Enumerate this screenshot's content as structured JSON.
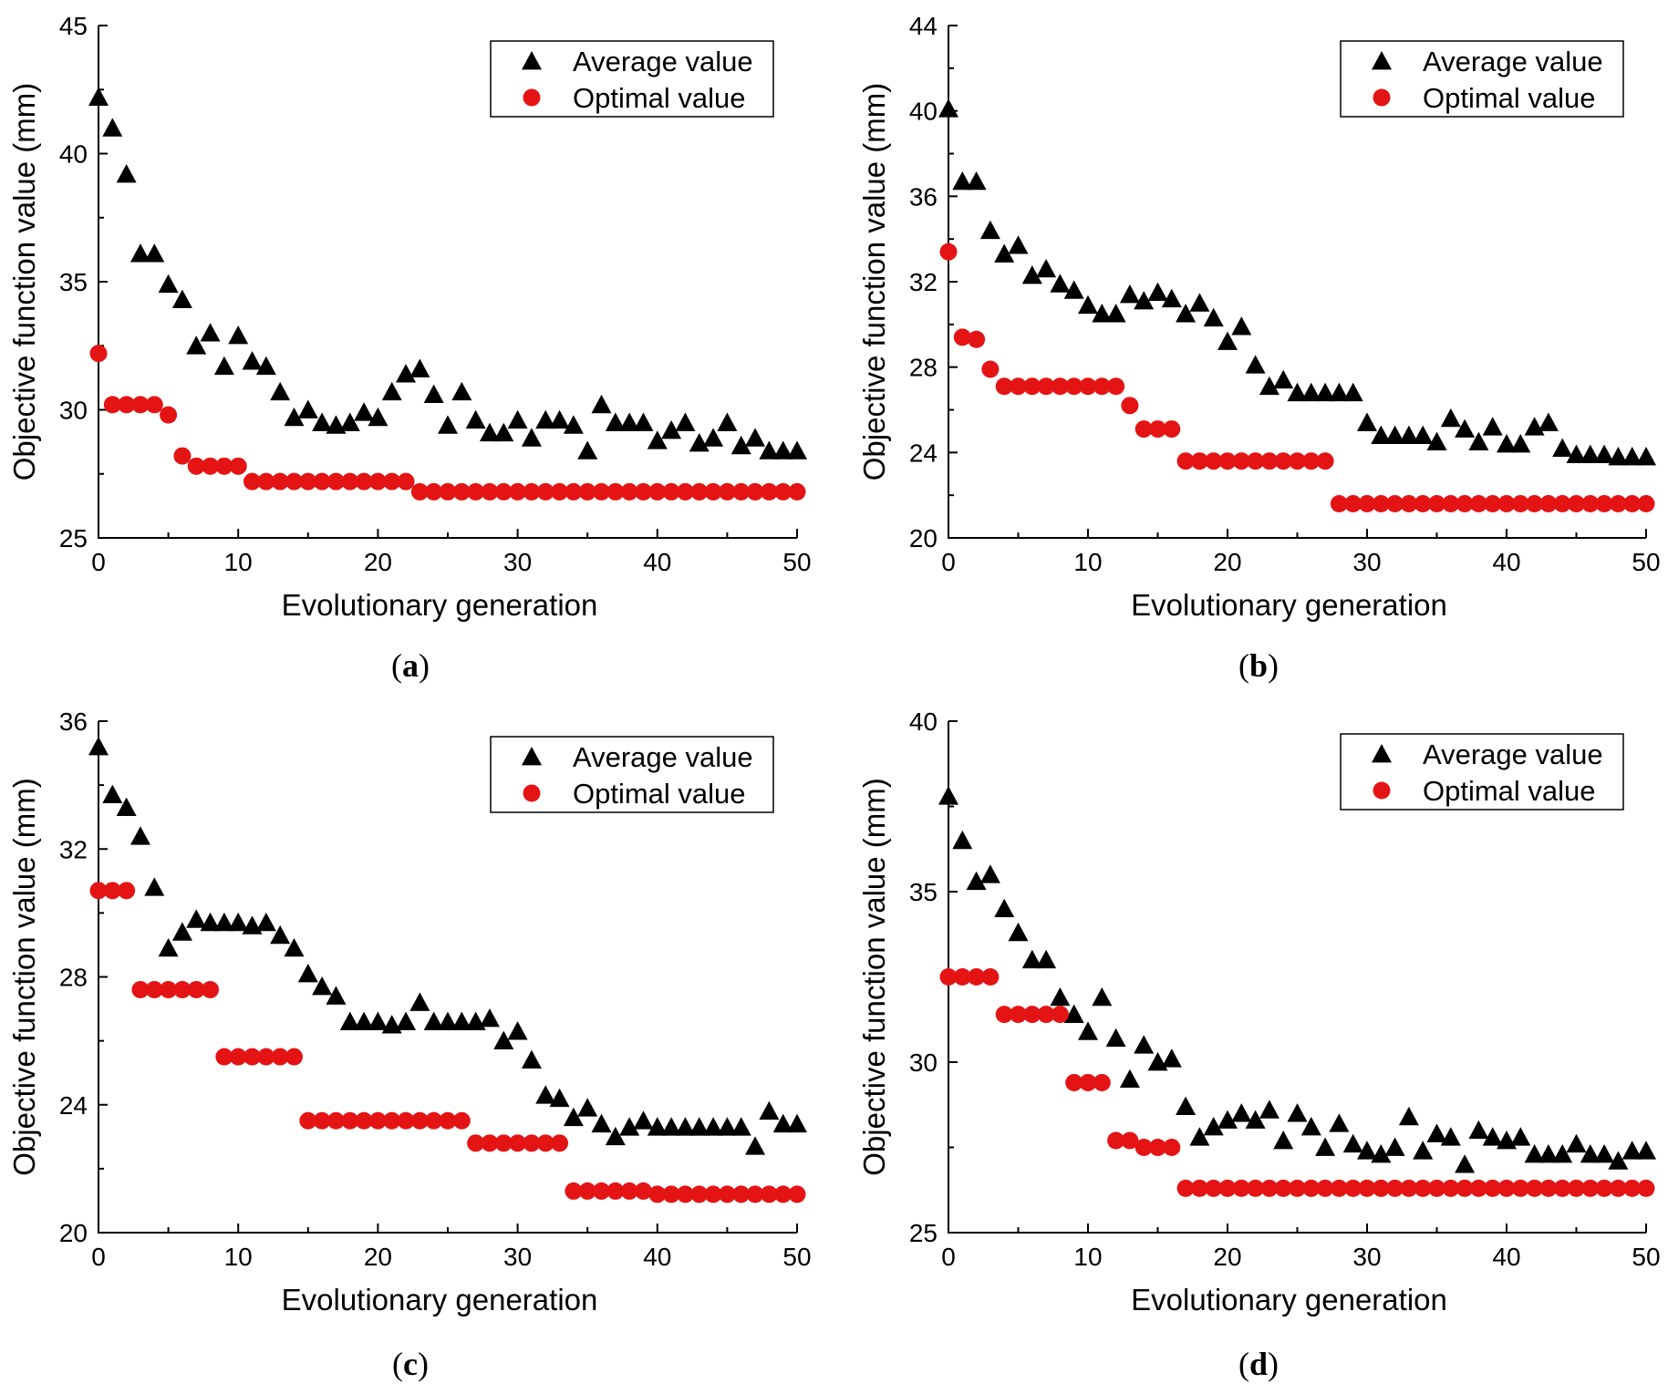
{
  "colors": {
    "average": "#000000",
    "optimal": "#e41414",
    "axis": "#000000"
  },
  "chart_data": [
    {
      "panel": "(a)",
      "panel_letter": "a",
      "type": "scatter",
      "xlabel": "Evolutionary generation",
      "ylabel": "Objective function value (mm)",
      "xlim": [
        0,
        50
      ],
      "ylim": [
        25,
        45
      ],
      "xticks": [
        0,
        10,
        20,
        30,
        40,
        50
      ],
      "yticks": [
        25,
        30,
        35,
        40,
        45
      ],
      "legend_position": "top-right",
      "series": [
        {
          "name": "Average value",
          "marker": "triangle",
          "values": [
            42.2,
            41.0,
            39.2,
            36.1,
            36.1,
            34.9,
            34.3,
            32.5,
            33.0,
            31.7,
            32.9,
            31.9,
            31.7,
            30.7,
            29.7,
            30.0,
            29.5,
            29.4,
            29.5,
            29.9,
            29.7,
            30.7,
            31.4,
            31.6,
            30.6,
            29.4,
            30.7,
            29.6,
            29.1,
            29.1,
            29.6,
            28.9,
            29.6,
            29.6,
            29.4,
            28.4,
            30.2,
            29.5,
            29.5,
            29.5,
            28.8,
            29.2,
            29.5,
            28.7,
            28.9,
            29.5,
            28.6,
            28.9,
            28.4,
            28.4,
            28.4
          ]
        },
        {
          "name": "Optimal value",
          "marker": "circle",
          "values": [
            32.2,
            30.2,
            30.2,
            30.2,
            30.2,
            29.8,
            28.2,
            27.8,
            27.8,
            27.8,
            27.8,
            27.2,
            27.2,
            27.2,
            27.2,
            27.2,
            27.2,
            27.2,
            27.2,
            27.2,
            27.2,
            27.2,
            27.2,
            26.8,
            26.8,
            26.8,
            26.8,
            26.8,
            26.8,
            26.8,
            26.8,
            26.8,
            26.8,
            26.8,
            26.8,
            26.8,
            26.8,
            26.8,
            26.8,
            26.8,
            26.8,
            26.8,
            26.8,
            26.8,
            26.8,
            26.8,
            26.8,
            26.8,
            26.8,
            26.8,
            26.8
          ]
        }
      ]
    },
    {
      "panel": "(b)",
      "panel_letter": "b",
      "type": "scatter",
      "xlabel": "Evolutionary generation",
      "ylabel": "Objective function value (mm)",
      "xlim": [
        0,
        50
      ],
      "ylim": [
        20,
        44
      ],
      "xticks": [
        0,
        10,
        20,
        30,
        40,
        50
      ],
      "yticks": [
        20,
        24,
        28,
        32,
        36,
        40,
        44
      ],
      "legend_position": "top-right",
      "series": [
        {
          "name": "Average value",
          "marker": "triangle",
          "values": [
            40.1,
            36.7,
            36.7,
            34.4,
            33.3,
            33.7,
            32.3,
            32.6,
            31.9,
            31.6,
            30.9,
            30.5,
            30.5,
            31.4,
            31.1,
            31.5,
            31.2,
            30.5,
            31.0,
            30.3,
            29.2,
            29.9,
            28.1,
            27.1,
            27.4,
            26.8,
            26.8,
            26.8,
            26.8,
            26.8,
            25.4,
            24.8,
            24.8,
            24.8,
            24.8,
            24.5,
            25.6,
            25.1,
            24.5,
            25.2,
            24.4,
            24.4,
            25.2,
            25.4,
            24.2,
            23.9,
            23.9,
            23.9,
            23.8,
            23.8,
            23.8
          ]
        },
        {
          "name": "Optimal value",
          "marker": "circle",
          "values": [
            33.4,
            29.4,
            29.3,
            27.9,
            27.1,
            27.1,
            27.1,
            27.1,
            27.1,
            27.1,
            27.1,
            27.1,
            27.1,
            26.2,
            25.1,
            25.1,
            25.1,
            23.6,
            23.6,
            23.6,
            23.6,
            23.6,
            23.6,
            23.6,
            23.6,
            23.6,
            23.6,
            23.6,
            21.6,
            21.6,
            21.6,
            21.6,
            21.6,
            21.6,
            21.6,
            21.6,
            21.6,
            21.6,
            21.6,
            21.6,
            21.6,
            21.6,
            21.6,
            21.6,
            21.6,
            21.6,
            21.6,
            21.6,
            21.6,
            21.6,
            21.6
          ]
        }
      ]
    },
    {
      "panel": "(c)",
      "panel_letter": "c",
      "type": "scatter",
      "xlabel": "Evolutionary generation",
      "ylabel": "Objective function value (mm)",
      "xlim": [
        0,
        50
      ],
      "ylim": [
        20,
        36
      ],
      "xticks": [
        0,
        10,
        20,
        30,
        40,
        50
      ],
      "yticks": [
        20,
        24,
        28,
        32,
        36
      ],
      "legend_position": "top-right",
      "series": [
        {
          "name": "Average value",
          "marker": "triangle",
          "values": [
            35.2,
            33.7,
            33.3,
            32.4,
            30.8,
            28.9,
            29.4,
            29.8,
            29.7,
            29.7,
            29.7,
            29.6,
            29.7,
            29.3,
            28.9,
            28.1,
            27.7,
            27.4,
            26.6,
            26.6,
            26.6,
            26.5,
            26.6,
            27.2,
            26.6,
            26.6,
            26.6,
            26.6,
            26.7,
            26.0,
            26.3,
            25.4,
            24.3,
            24.2,
            23.6,
            23.9,
            23.4,
            23.0,
            23.3,
            23.5,
            23.3,
            23.3,
            23.3,
            23.3,
            23.3,
            23.3,
            23.3,
            22.7,
            23.8,
            23.4,
            23.4
          ]
        },
        {
          "name": "Optimal value",
          "marker": "circle",
          "values": [
            30.7,
            30.7,
            30.7,
            27.6,
            27.6,
            27.6,
            27.6,
            27.6,
            27.6,
            25.5,
            25.5,
            25.5,
            25.5,
            25.5,
            25.5,
            23.5,
            23.5,
            23.5,
            23.5,
            23.5,
            23.5,
            23.5,
            23.5,
            23.5,
            23.5,
            23.5,
            23.5,
            22.8,
            22.8,
            22.8,
            22.8,
            22.8,
            22.8,
            22.8,
            21.3,
            21.3,
            21.3,
            21.3,
            21.3,
            21.3,
            21.2,
            21.2,
            21.2,
            21.2,
            21.2,
            21.2,
            21.2,
            21.2,
            21.2,
            21.2,
            21.2
          ]
        }
      ]
    },
    {
      "panel": "(d)",
      "panel_letter": "d",
      "type": "scatter",
      "xlabel": "Evolutionary generation",
      "ylabel": "Objective function value (mm)",
      "xlim": [
        0,
        50
      ],
      "ylim": [
        25,
        40
      ],
      "xticks": [
        0,
        10,
        20,
        30,
        40,
        50
      ],
      "yticks": [
        25,
        30,
        35,
        40
      ],
      "legend_position": "top-right",
      "series": [
        {
          "name": "Average value",
          "marker": "triangle",
          "values": [
            37.8,
            36.5,
            35.3,
            35.5,
            34.5,
            33.8,
            33.0,
            33.0,
            31.9,
            31.4,
            30.9,
            31.9,
            30.7,
            29.5,
            30.5,
            30.0,
            30.1,
            28.7,
            27.8,
            28.1,
            28.3,
            28.5,
            28.3,
            28.6,
            27.7,
            28.5,
            28.1,
            27.5,
            28.2,
            27.6,
            27.4,
            27.3,
            27.5,
            28.4,
            27.4,
            27.9,
            27.8,
            27.0,
            28.0,
            27.8,
            27.7,
            27.8,
            27.3,
            27.3,
            27.3,
            27.6,
            27.3,
            27.3,
            27.1,
            27.4,
            27.4
          ]
        },
        {
          "name": "Optimal value",
          "marker": "circle",
          "values": [
            32.5,
            32.5,
            32.5,
            32.5,
            31.4,
            31.4,
            31.4,
            31.4,
            31.4,
            29.4,
            29.4,
            29.4,
            27.7,
            27.7,
            27.5,
            27.5,
            27.5,
            26.3,
            26.3,
            26.3,
            26.3,
            26.3,
            26.3,
            26.3,
            26.3,
            26.3,
            26.3,
            26.3,
            26.3,
            26.3,
            26.3,
            26.3,
            26.3,
            26.3,
            26.3,
            26.3,
            26.3,
            26.3,
            26.3,
            26.3,
            26.3,
            26.3,
            26.3,
            26.3,
            26.3,
            26.3,
            26.3,
            26.3,
            26.3,
            26.3,
            26.3
          ]
        }
      ]
    }
  ]
}
